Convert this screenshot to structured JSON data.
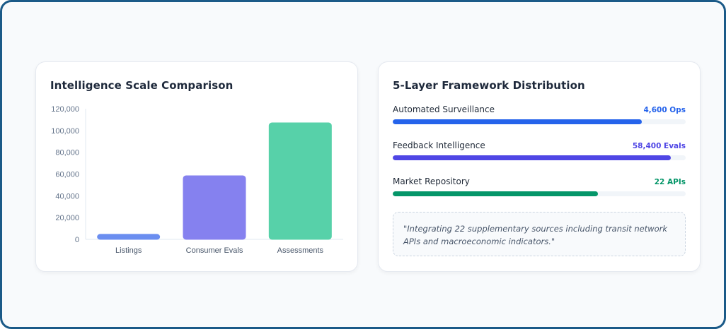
{
  "left_card": {
    "title": "Intelligence Scale Comparison"
  },
  "chart_data": {
    "type": "bar",
    "title": "Intelligence Scale Comparison",
    "categories": [
      "Listings",
      "Consumer Evals",
      "Assessments"
    ],
    "values": [
      4600,
      58400,
      107000
    ],
    "colors": [
      "#6b8ef0",
      "#8581ef",
      "#57d1a9"
    ],
    "ylim": [
      0,
      120000
    ],
    "yticks": [
      0,
      20000,
      40000,
      60000,
      80000,
      100000,
      120000
    ],
    "ytick_labels": [
      "0",
      "20,000",
      "40,000",
      "60,000",
      "80,000",
      "100,000",
      "120,000"
    ],
    "grid": false
  },
  "right_card": {
    "title": "5-Layer Framework Distribution",
    "rows": [
      {
        "label": "Automated Surveillance",
        "value": "4,600 Ops",
        "color": "#2563eb",
        "fill": 0.85
      },
      {
        "label": "Feedback Intelligence",
        "value": "58,400 Evals",
        "color": "#4f46e5",
        "fill": 0.95
      },
      {
        "label": "Market Repository",
        "value": "22 APIs",
        "color": "#059669",
        "fill": 0.7
      }
    ],
    "quote": "\"Integrating 22 supplementary sources including transit network APIs and macroeconomic indicators.\""
  }
}
